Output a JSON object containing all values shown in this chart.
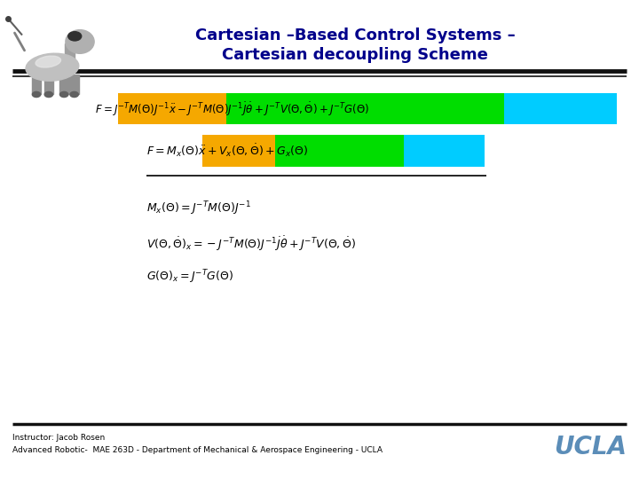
{
  "title_line1": "Cartesian –Based Control Systems –",
  "title_line2": "Cartesian decoupling Scheme",
  "title_color": "#00008B",
  "title_fontsize": 13,
  "bg_color": "#FFFFFF",
  "header_bar_color": "#111111",
  "footer_bar_color": "#111111",
  "orange_color": "#F5A800",
  "green_color": "#00DD00",
  "cyan_color": "#00CCFF",
  "footer_text1": "Instructor: Jacob Rosen",
  "footer_text2": "Advanced Robotic-  MAE 263D - Department of Mechanical & Aerospace Engineering - UCLA",
  "ucla_color": "#5B8DB8"
}
